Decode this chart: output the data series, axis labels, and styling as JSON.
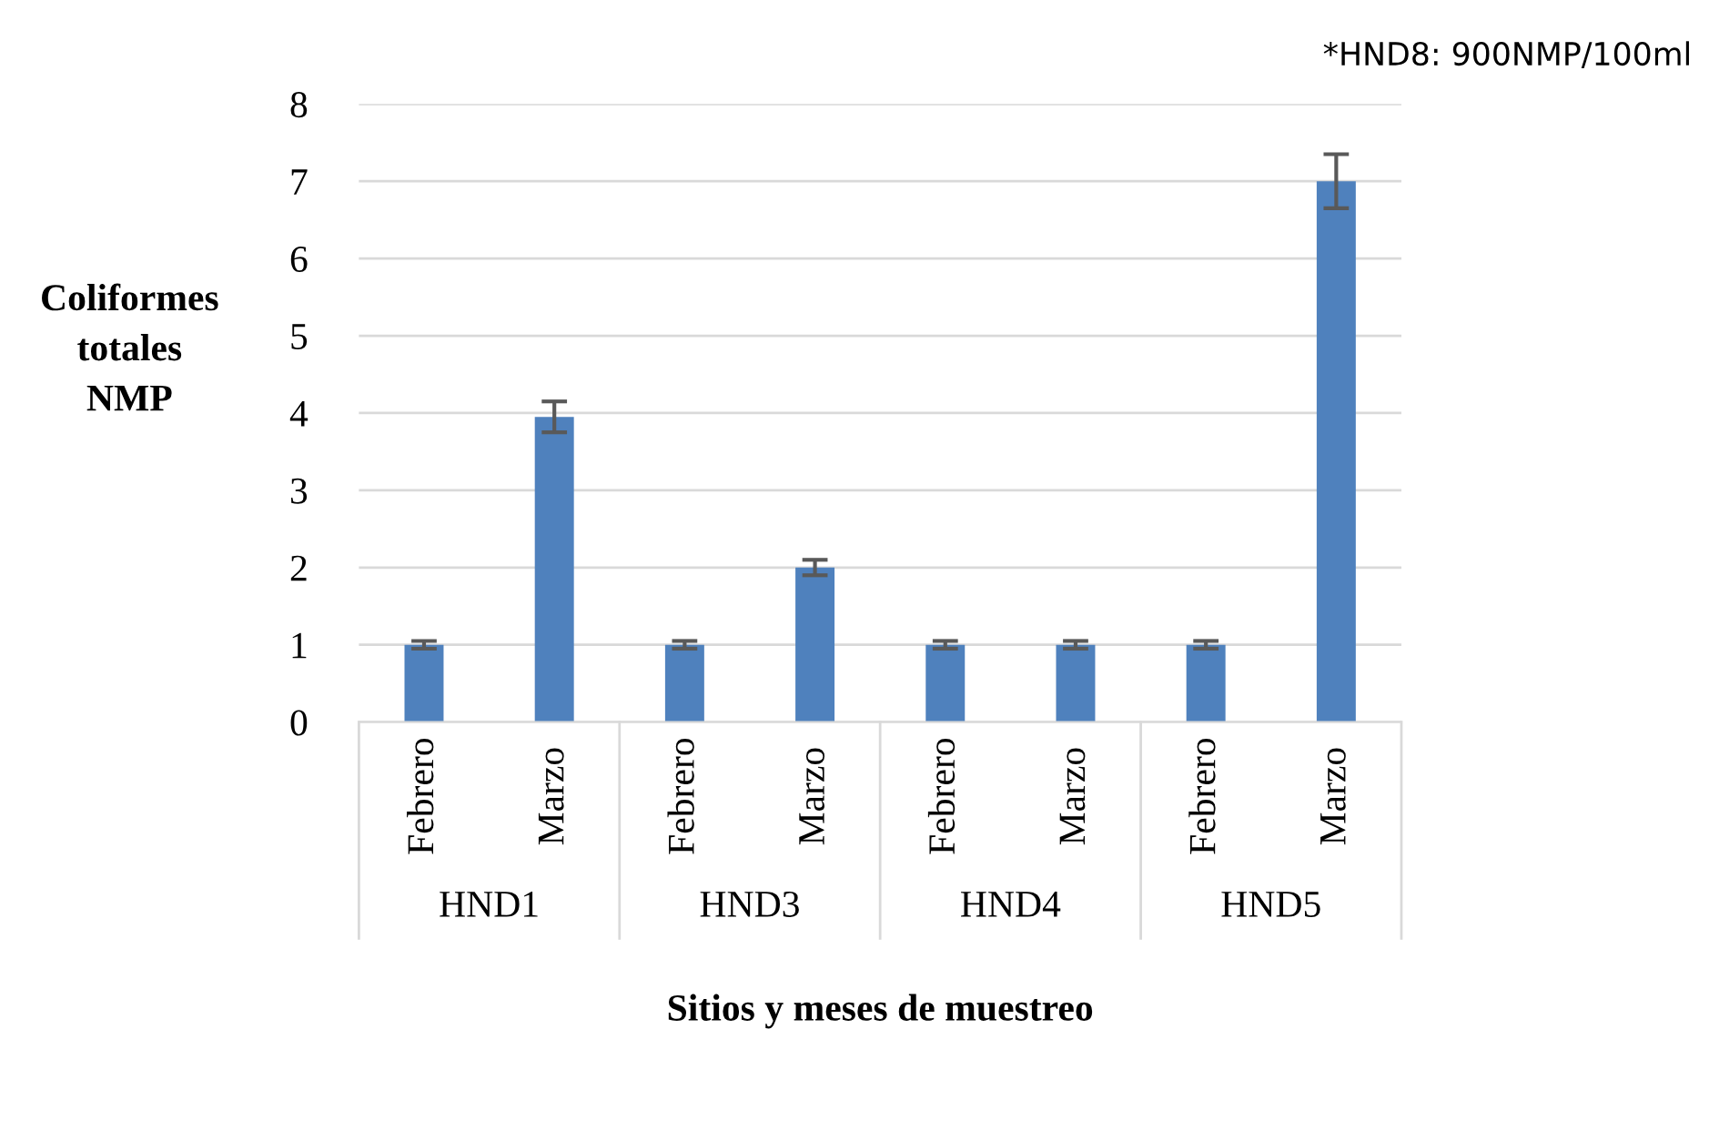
{
  "chart_data": {
    "type": "bar",
    "xlabel": "Sitios y meses de muestreo",
    "ylabel": "Coliformes\ntotales\nNMP",
    "categories": [
      "Febrero",
      "Marzo",
      "Febrero",
      "Marzo",
      "Febrero",
      "Marzo",
      "Febrero",
      "Marzo"
    ],
    "values": [
      1,
      3.95,
      1,
      2,
      1,
      1,
      1,
      7
    ],
    "errors": [
      0.05,
      0.2,
      0.05,
      0.1,
      0.05,
      0.05,
      0.05,
      0.35
    ],
    "color": "#4f81bd",
    "ylim": [
      0,
      8
    ],
    "yticks": [
      0,
      1,
      2,
      3,
      4,
      5,
      6,
      7,
      8
    ],
    "grid": "y",
    "annotations": [
      "*HND8: 900NMP/100ml",
      "HND1",
      "HND3",
      "HND4",
      "HND5"
    ]
  }
}
